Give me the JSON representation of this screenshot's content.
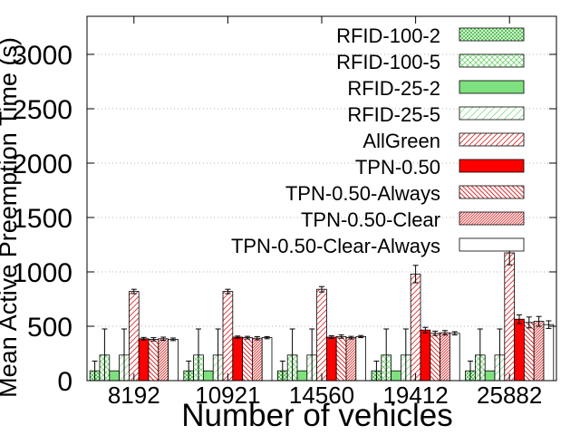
{
  "chart_data": {
    "type": "bar",
    "title": "",
    "xlabel": "Number of vehicles",
    "ylabel": "Mean Active Preemption Time (s)",
    "ylim": [
      0,
      3350
    ],
    "yticks": [
      0,
      500,
      1000,
      1500,
      2000,
      2500,
      3000
    ],
    "ytick_labels": [
      "0",
      "500",
      "1000",
      "1500",
      "2000",
      "2500",
      "3000"
    ],
    "grid": true,
    "legend_position": "top-right",
    "categories": [
      "8192",
      "10921",
      "14560",
      "19412",
      "25882"
    ],
    "series": [
      {
        "name": "RFID-100-2",
        "color": "#7cd17c",
        "pattern": "crosshatch-dense",
        "values": [
          90,
          90,
          90,
          90,
          90
        ],
        "error": [
          90,
          90,
          90,
          90,
          90
        ]
      },
      {
        "name": "RFID-100-5",
        "color": "#8fe08f",
        "pattern": "crosshatch-light",
        "values": [
          235,
          235,
          235,
          235,
          235
        ],
        "error": [
          240,
          240,
          240,
          240,
          240
        ]
      },
      {
        "name": "RFID-25-2",
        "color": "#7ee07e",
        "pattern": "solid",
        "values": [
          90,
          90,
          90,
          90,
          90
        ],
        "error": [
          0,
          0,
          0,
          0,
          0
        ]
      },
      {
        "name": "RFID-25-5",
        "color": "#8fe08f",
        "pattern": "sparse-dots",
        "values": [
          235,
          235,
          235,
          235,
          235
        ],
        "error": [
          240,
          240,
          240,
          240,
          240
        ]
      },
      {
        "name": "AllGreen",
        "color": "#e03030",
        "pattern": "diag-light",
        "values": [
          820,
          820,
          840,
          980,
          1175
        ],
        "error": [
          20,
          20,
          25,
          80,
          110
        ]
      },
      {
        "name": "TPN-0.50",
        "color": "#ff0000",
        "pattern": "solid",
        "values": [
          385,
          400,
          400,
          465,
          565
        ],
        "error": [
          12,
          10,
          12,
          25,
          40
        ]
      },
      {
        "name": "TPN-0.50-Always",
        "color": "#e03030",
        "pattern": "diag-back",
        "values": [
          380,
          395,
          405,
          435,
          535
        ],
        "error": [
          15,
          12,
          15,
          20,
          50
        ]
      },
      {
        "name": "TPN-0.50-Clear",
        "color": "#e03030",
        "pattern": "diag-dense",
        "values": [
          385,
          390,
          395,
          440,
          545
        ],
        "error": [
          15,
          15,
          12,
          20,
          45
        ]
      },
      {
        "name": "TPN-0.50-Clear-Always",
        "color": "#ffffff",
        "pattern": "none",
        "values": [
          380,
          395,
          405,
          435,
          515
        ],
        "error": [
          12,
          10,
          10,
          15,
          35
        ]
      }
    ]
  }
}
